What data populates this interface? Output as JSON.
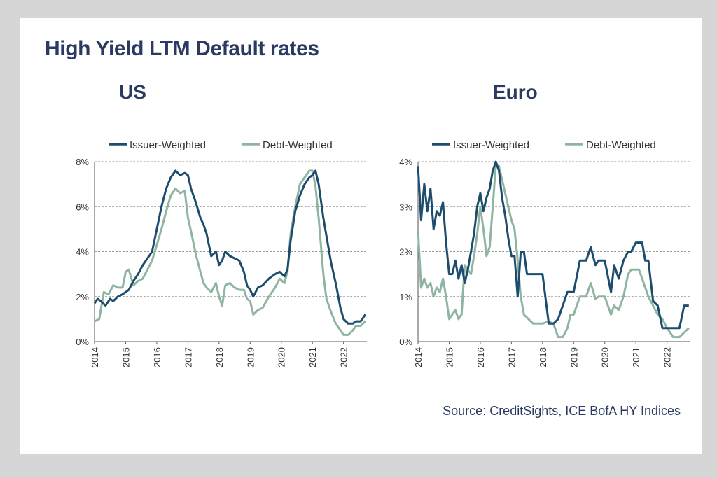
{
  "page": {
    "title": "High Yield LTM Default rates",
    "source": "Source: CreditSights, ICE BofA HY Indices",
    "colors": {
      "title": "#2b3a62",
      "issuer": "#1c4d6e",
      "debt": "#8fb5a2",
      "grid": "#9a9a9a"
    }
  },
  "chart_data": [
    {
      "type": "line",
      "title": "US",
      "ylim": [
        0,
        8
      ],
      "yticks": [
        "0%",
        "2%",
        "4%",
        "6%",
        "8%"
      ],
      "xlim": [
        2014,
        2022.75
      ],
      "xticks": [
        "2014",
        "2015",
        "2016",
        "2017",
        "2018",
        "2019",
        "2020",
        "2021",
        "2022"
      ],
      "grid": true,
      "legend": "top",
      "series": [
        {
          "name": "Issuer-Weighted",
          "color": "#1c4d6e",
          "x": [
            2014,
            2014.1,
            2014.2,
            2014.35,
            2014.5,
            2014.6,
            2014.75,
            2014.9,
            2015,
            2015.1,
            2015.25,
            2015.4,
            2015.55,
            2015.7,
            2015.85,
            2016,
            2016.15,
            2016.3,
            2016.45,
            2016.6,
            2016.75,
            2016.9,
            2017,
            2017.1,
            2017.25,
            2017.4,
            2017.5,
            2017.6,
            2017.75,
            2017.9,
            2018,
            2018.1,
            2018.2,
            2018.35,
            2018.5,
            2018.65,
            2018.8,
            2018.9,
            2019,
            2019.1,
            2019.25,
            2019.4,
            2019.6,
            2019.8,
            2019.95,
            2020.1,
            2020.2,
            2020.3,
            2020.45,
            2020.6,
            2020.75,
            2020.9,
            2021,
            2021.1,
            2021.2,
            2021.35,
            2021.5,
            2021.6,
            2021.75,
            2021.9,
            2022,
            2022.15,
            2022.3,
            2022.4,
            2022.55,
            2022.7
          ],
          "values": [
            1.7,
            1.9,
            1.8,
            1.6,
            1.9,
            1.8,
            2.0,
            2.1,
            2.2,
            2.3,
            2.7,
            3.0,
            3.4,
            3.7,
            4.0,
            5.0,
            6.0,
            6.8,
            7.3,
            7.6,
            7.4,
            7.5,
            7.4,
            6.8,
            6.2,
            5.5,
            5.2,
            4.8,
            3.8,
            4.0,
            3.4,
            3.6,
            4.0,
            3.8,
            3.7,
            3.6,
            3.1,
            2.5,
            2.3,
            2.0,
            2.4,
            2.5,
            2.8,
            3.0,
            3.1,
            2.9,
            3.2,
            4.5,
            5.8,
            6.5,
            7.0,
            7.3,
            7.4,
            7.6,
            7.0,
            5.5,
            4.3,
            3.5,
            2.6,
            1.5,
            1.0,
            0.8,
            0.8,
            0.9,
            0.9,
            1.2
          ]
        },
        {
          "name": "Debt-Weighted",
          "color": "#8fb5a2",
          "x": [
            2014,
            2014.15,
            2014.3,
            2014.45,
            2014.6,
            2014.75,
            2014.9,
            2015,
            2015.1,
            2015.25,
            2015.4,
            2015.55,
            2015.7,
            2015.85,
            2016,
            2016.15,
            2016.3,
            2016.45,
            2016.6,
            2016.75,
            2016.9,
            2017,
            2017.1,
            2017.25,
            2017.4,
            2017.5,
            2017.6,
            2017.75,
            2017.9,
            2018,
            2018.1,
            2018.2,
            2018.35,
            2018.5,
            2018.65,
            2018.8,
            2018.9,
            2019,
            2019.1,
            2019.25,
            2019.4,
            2019.6,
            2019.8,
            2019.95,
            2020.1,
            2020.2,
            2020.3,
            2020.45,
            2020.6,
            2020.75,
            2020.9,
            2021,
            2021.1,
            2021.2,
            2021.35,
            2021.45,
            2021.6,
            2021.75,
            2021.9,
            2022,
            2022.15,
            2022.3,
            2022.4,
            2022.55,
            2022.7
          ],
          "values": [
            0.9,
            1.0,
            2.2,
            2.1,
            2.5,
            2.4,
            2.4,
            3.1,
            3.2,
            2.5,
            2.7,
            2.8,
            3.2,
            3.6,
            4.3,
            5.0,
            5.8,
            6.5,
            6.8,
            6.6,
            6.7,
            5.5,
            4.9,
            3.9,
            3.1,
            2.6,
            2.4,
            2.2,
            2.6,
            2.0,
            1.6,
            2.5,
            2.6,
            2.4,
            2.3,
            2.3,
            1.9,
            1.8,
            1.2,
            1.4,
            1.5,
            2.0,
            2.4,
            2.8,
            2.6,
            3.1,
            4.8,
            6.0,
            7.0,
            7.3,
            7.6,
            7.6,
            6.9,
            5.5,
            3.0,
            1.9,
            1.3,
            0.8,
            0.5,
            0.3,
            0.3,
            0.5,
            0.7,
            0.7,
            0.9
          ]
        }
      ]
    },
    {
      "type": "line",
      "title": "Euro",
      "ylim": [
        0,
        4
      ],
      "yticks": [
        "0%",
        "1%",
        "2%",
        "3%",
        "4%"
      ],
      "xlim": [
        2014,
        2022.75
      ],
      "xticks": [
        "2014",
        "2015",
        "2016",
        "2017",
        "2018",
        "2019",
        "2020",
        "2021",
        "2022"
      ],
      "grid": true,
      "legend": "top",
      "series": [
        {
          "name": "Issuer-Weighted",
          "color": "#1c4d6e",
          "x": [
            2014,
            2014.1,
            2014.2,
            2014.3,
            2014.4,
            2014.5,
            2014.6,
            2014.7,
            2014.8,
            2014.9,
            2015,
            2015.1,
            2015.2,
            2015.3,
            2015.4,
            2015.5,
            2015.6,
            2015.7,
            2015.8,
            2015.9,
            2016,
            2016.1,
            2016.2,
            2016.3,
            2016.4,
            2016.5,
            2016.6,
            2016.7,
            2016.8,
            2016.9,
            2017,
            2017.1,
            2017.2,
            2017.3,
            2017.4,
            2017.5,
            2017.6,
            2017.75,
            2017.9,
            2018,
            2018.2,
            2018.35,
            2018.5,
            2018.65,
            2018.8,
            2018.9,
            2019,
            2019.2,
            2019.4,
            2019.55,
            2019.7,
            2019.8,
            2019.9,
            2020,
            2020.2,
            2020.3,
            2020.45,
            2020.6,
            2020.75,
            2020.85,
            2021,
            2021.1,
            2021.2,
            2021.3,
            2021.4,
            2021.55,
            2021.7,
            2021.85,
            2022,
            2022.2,
            2022.4,
            2022.55,
            2022.7
          ],
          "values": [
            3.9,
            2.7,
            3.5,
            2.9,
            3.4,
            2.5,
            2.9,
            2.8,
            3.1,
            2.2,
            1.5,
            1.5,
            1.8,
            1.4,
            1.7,
            1.3,
            1.6,
            2.0,
            2.4,
            3.0,
            3.3,
            2.9,
            3.2,
            3.4,
            3.8,
            4.0,
            3.8,
            3.2,
            2.8,
            2.3,
            1.9,
            1.9,
            1.0,
            2.0,
            2.0,
            1.5,
            1.5,
            1.5,
            1.5,
            1.5,
            0.4,
            0.4,
            0.5,
            0.8,
            1.1,
            1.1,
            1.1,
            1.8,
            1.8,
            2.1,
            1.7,
            1.8,
            1.8,
            1.8,
            1.1,
            1.7,
            1.4,
            1.8,
            2.0,
            2.0,
            2.2,
            2.2,
            2.2,
            1.8,
            1.8,
            0.9,
            0.8,
            0.3,
            0.3,
            0.3,
            0.3,
            0.8,
            0.8
          ]
        },
        {
          "name": "Debt-Weighted",
          "color": "#8fb5a2",
          "x": [
            2014,
            2014.1,
            2014.2,
            2014.3,
            2014.4,
            2014.5,
            2014.6,
            2014.7,
            2014.8,
            2014.9,
            2015,
            2015.1,
            2015.2,
            2015.3,
            2015.4,
            2015.5,
            2015.6,
            2015.7,
            2015.8,
            2015.9,
            2016,
            2016.1,
            2016.2,
            2016.3,
            2016.4,
            2016.5,
            2016.6,
            2016.7,
            2016.8,
            2016.9,
            2017,
            2017.1,
            2017.2,
            2017.3,
            2017.4,
            2017.55,
            2017.7,
            2017.85,
            2018,
            2018.2,
            2018.35,
            2018.5,
            2018.65,
            2018.8,
            2018.9,
            2019,
            2019.2,
            2019.4,
            2019.55,
            2019.7,
            2019.8,
            2019.9,
            2020,
            2020.2,
            2020.3,
            2020.45,
            2020.6,
            2020.75,
            2020.85,
            2021,
            2021.1,
            2021.2,
            2021.3,
            2021.4,
            2021.55,
            2021.7,
            2021.85,
            2022,
            2022.2,
            2022.4,
            2022.55,
            2022.7
          ],
          "values": [
            2.5,
            1.2,
            1.4,
            1.2,
            1.3,
            1.0,
            1.2,
            1.1,
            1.4,
            1.0,
            0.5,
            0.6,
            0.7,
            0.5,
            0.6,
            1.7,
            1.6,
            1.5,
            1.9,
            2.4,
            3.0,
            2.5,
            1.9,
            2.1,
            3.0,
            3.9,
            3.9,
            3.6,
            3.3,
            3.0,
            2.7,
            2.5,
            1.8,
            1.0,
            0.6,
            0.5,
            0.4,
            0.4,
            0.4,
            0.45,
            0.4,
            0.1,
            0.1,
            0.3,
            0.6,
            0.6,
            1.0,
            1.0,
            1.3,
            0.95,
            1.0,
            1.0,
            1.0,
            0.6,
            0.8,
            0.7,
            1.0,
            1.5,
            1.6,
            1.6,
            1.6,
            1.4,
            1.2,
            1.0,
            0.8,
            0.6,
            0.5,
            0.3,
            0.1,
            0.1,
            0.2,
            0.3
          ]
        }
      ]
    }
  ]
}
